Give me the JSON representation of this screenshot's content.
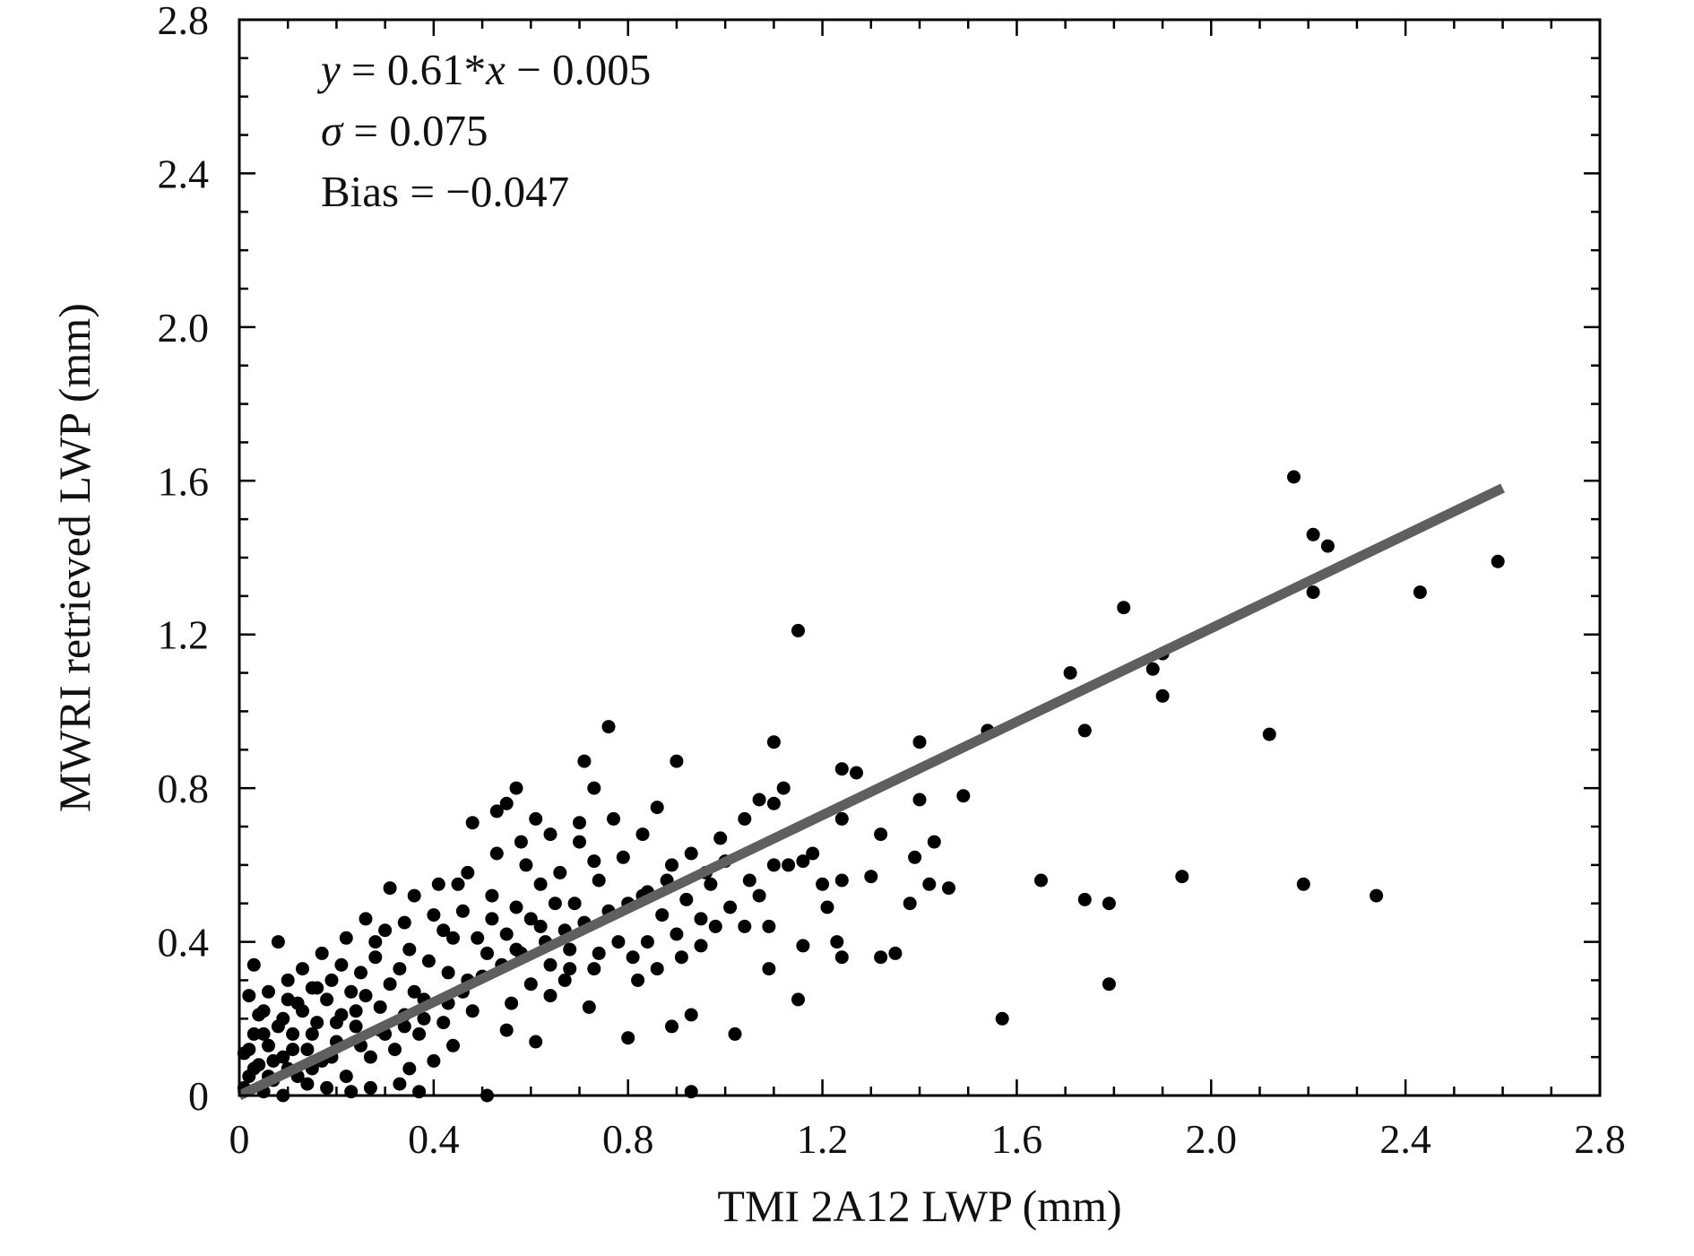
{
  "chart_data": {
    "type": "scatter",
    "title": "",
    "xlabel": "TMI 2A12 LWP (mm)",
    "ylabel": "MWRI retrieved LWP (mm)",
    "xlim": [
      0,
      2.8
    ],
    "ylim": [
      0,
      2.8
    ],
    "x_ticks": [
      "0",
      "0.4",
      "0.8",
      "1.2",
      "1.6",
      "2.0",
      "2.4",
      "2.8"
    ],
    "y_ticks": [
      "0",
      "0.4",
      "0.8",
      "1.2",
      "1.6",
      "2.0",
      "2.4",
      "2.8"
    ],
    "grid": false,
    "point_color": "#000000",
    "fit_line_color": "#5f5f5f",
    "annotations": {
      "equation": {
        "y": "y",
        "mid": " = 0.61*",
        "x": "x",
        "tail": " − 0.005"
      },
      "sigma": {
        "symbol": "σ",
        "text": " = 0.075"
      },
      "bias": "Bias = −0.047"
    },
    "fit_line": {
      "slope": 0.61,
      "intercept": -0.005,
      "x_start": 0.0,
      "x_end": 2.6
    },
    "points": [
      [
        2.17,
        1.61
      ],
      [
        2.21,
        1.46
      ],
      [
        2.24,
        1.43
      ],
      [
        2.21,
        1.31
      ],
      [
        2.59,
        1.39
      ],
      [
        2.43,
        1.31
      ],
      [
        1.82,
        1.27
      ],
      [
        1.71,
        1.1
      ],
      [
        1.9,
        1.15
      ],
      [
        1.88,
        1.11
      ],
      [
        1.9,
        1.04
      ],
      [
        2.12,
        0.94
      ],
      [
        1.74,
        0.95
      ],
      [
        1.54,
        0.95
      ],
      [
        1.15,
        1.21
      ],
      [
        1.4,
        0.92
      ],
      [
        1.49,
        0.78
      ],
      [
        1.4,
        0.77
      ],
      [
        1.24,
        0.85
      ],
      [
        1.27,
        0.84
      ],
      [
        1.1,
        0.92
      ],
      [
        1.94,
        0.57
      ],
      [
        2.19,
        0.55
      ],
      [
        2.34,
        0.52
      ],
      [
        1.65,
        0.56
      ],
      [
        1.74,
        0.51
      ],
      [
        1.79,
        0.5
      ],
      [
        1.79,
        0.29
      ],
      [
        1.57,
        0.2
      ],
      [
        1.43,
        0.66
      ],
      [
        1.46,
        0.54
      ],
      [
        1.42,
        0.55
      ],
      [
        1.38,
        0.5
      ],
      [
        1.39,
        0.62
      ],
      [
        1.32,
        0.68
      ],
      [
        1.3,
        0.57
      ],
      [
        1.32,
        0.36
      ],
      [
        1.35,
        0.37
      ],
      [
        1.24,
        0.72
      ],
      [
        1.24,
        0.56
      ],
      [
        1.23,
        0.4
      ],
      [
        1.24,
        0.36
      ],
      [
        1.2,
        0.55
      ],
      [
        1.21,
        0.49
      ],
      [
        1.16,
        0.61
      ],
      [
        1.16,
        0.39
      ],
      [
        1.15,
        0.25
      ],
      [
        1.12,
        0.8
      ],
      [
        1.1,
        0.76
      ],
      [
        1.07,
        0.77
      ],
      [
        1.1,
        0.6
      ],
      [
        1.09,
        0.44
      ],
      [
        1.09,
        0.33
      ],
      [
        1.05,
        0.56
      ],
      [
        1.04,
        0.44
      ],
      [
        1.0,
        0.61
      ],
      [
        1.02,
        0.16
      ],
      [
        0.97,
        0.55
      ],
      [
        0.95,
        0.46
      ],
      [
        0.93,
        0.21
      ],
      [
        0.93,
        0.01
      ],
      [
        0.9,
        0.87
      ],
      [
        0.86,
        0.75
      ],
      [
        0.89,
        0.6
      ],
      [
        0.83,
        0.52
      ],
      [
        0.84,
        0.4
      ],
      [
        0.82,
        0.3
      ],
      [
        0.8,
        0.15
      ],
      [
        0.89,
        0.18
      ],
      [
        0.76,
        0.96
      ],
      [
        0.71,
        0.87
      ],
      [
        0.73,
        0.8
      ],
      [
        0.7,
        0.71
      ],
      [
        0.64,
        0.68
      ],
      [
        0.61,
        0.72
      ],
      [
        0.57,
        0.8
      ],
      [
        0.55,
        0.76
      ],
      [
        0.53,
        0.74
      ],
      [
        0.48,
        0.71
      ],
      [
        0.73,
        0.61
      ],
      [
        0.62,
        0.55
      ],
      [
        0.74,
        0.37
      ],
      [
        0.68,
        0.33
      ],
      [
        0.64,
        0.26
      ],
      [
        0.72,
        0.23
      ],
      [
        0.56,
        0.24
      ],
      [
        0.55,
        0.17
      ],
      [
        0.61,
        0.14
      ],
      [
        0.51,
        0.0
      ],
      [
        0.37,
        0.01
      ],
      [
        0.33,
        0.03
      ],
      [
        0.6,
        0.46
      ],
      [
        0.57,
        0.38
      ],
      [
        0.52,
        0.52
      ],
      [
        0.49,
        0.41
      ],
      [
        0.45,
        0.55
      ],
      [
        0.43,
        0.32
      ],
      [
        0.4,
        0.47
      ],
      [
        0.38,
        0.25
      ],
      [
        0.35,
        0.38
      ],
      [
        0.34,
        0.21
      ],
      [
        0.31,
        0.29
      ],
      [
        0.3,
        0.43
      ],
      [
        0.29,
        0.17
      ],
      [
        0.28,
        0.36
      ],
      [
        0.27,
        0.1
      ],
      [
        0.26,
        0.26
      ],
      [
        0.25,
        0.32
      ],
      [
        0.24,
        0.18
      ],
      [
        0.23,
        0.27
      ],
      [
        0.22,
        0.05
      ],
      [
        0.21,
        0.21
      ],
      [
        0.2,
        0.14
      ],
      [
        0.19,
        0.3
      ],
      [
        0.18,
        0.25
      ],
      [
        0.17,
        0.09
      ],
      [
        0.16,
        0.19
      ],
      [
        0.15,
        0.28
      ],
      [
        0.14,
        0.12
      ],
      [
        0.13,
        0.22
      ],
      [
        0.12,
        0.05
      ],
      [
        0.11,
        0.16
      ],
      [
        0.1,
        0.25
      ],
      [
        0.09,
        0.1
      ],
      [
        0.08,
        0.4
      ],
      [
        0.08,
        0.18
      ],
      [
        0.07,
        0.04
      ],
      [
        0.06,
        0.13
      ],
      [
        0.05,
        0.22
      ],
      [
        0.04,
        0.08
      ],
      [
        0.03,
        0.16
      ],
      [
        0.03,
        0.34
      ],
      [
        0.02,
        0.05
      ],
      [
        0.01,
        0.11
      ],
      [
        0.01,
        0.02
      ],
      [
        0.02,
        0.26
      ],
      [
        0.05,
        0.01
      ],
      [
        0.09,
        0.0
      ],
      [
        0.14,
        0.03
      ],
      [
        0.18,
        0.02
      ],
      [
        0.23,
        0.01
      ],
      [
        0.27,
        0.02
      ],
      [
        0.35,
        0.07
      ],
      [
        0.32,
        0.12
      ],
      [
        0.37,
        0.16
      ],
      [
        0.42,
        0.19
      ],
      [
        0.46,
        0.27
      ],
      [
        0.5,
        0.31
      ],
      [
        0.54,
        0.34
      ],
      [
        0.58,
        0.37
      ],
      [
        0.63,
        0.4
      ],
      [
        0.67,
        0.43
      ],
      [
        0.71,
        0.45
      ],
      [
        0.76,
        0.48
      ],
      [
        0.8,
        0.5
      ],
      [
        0.84,
        0.53
      ],
      [
        0.87,
        0.47
      ],
      [
        0.92,
        0.51
      ],
      [
        0.96,
        0.58
      ],
      [
        0.98,
        0.44
      ],
      [
        0.91,
        0.36
      ],
      [
        0.86,
        0.33
      ],
      [
        0.78,
        0.4
      ],
      [
        0.69,
        0.5
      ],
      [
        0.66,
        0.58
      ],
      [
        0.59,
        0.6
      ],
      [
        0.53,
        0.63
      ],
      [
        0.47,
        0.58
      ],
      [
        0.41,
        0.55
      ],
      [
        0.36,
        0.52
      ],
      [
        0.31,
        0.54
      ],
      [
        0.26,
        0.46
      ],
      [
        0.22,
        0.41
      ],
      [
        0.17,
        0.37
      ],
      [
        0.13,
        0.33
      ],
      [
        0.1,
        0.3
      ],
      [
        0.06,
        0.27
      ],
      [
        0.04,
        0.21
      ],
      [
        0.44,
        0.41
      ],
      [
        0.39,
        0.35
      ],
      [
        0.33,
        0.33
      ],
      [
        0.29,
        0.23
      ],
      [
        0.24,
        0.22
      ],
      [
        0.2,
        0.19
      ],
      [
        0.15,
        0.16
      ],
      [
        0.11,
        0.12
      ],
      [
        0.07,
        0.09
      ],
      [
        0.03,
        0.07
      ],
      [
        0.48,
        0.22
      ],
      [
        0.44,
        0.13
      ],
      [
        0.4,
        0.09
      ],
      [
        0.36,
        0.27
      ],
      [
        0.57,
        0.49
      ],
      [
        0.62,
        0.44
      ],
      [
        0.65,
        0.5
      ],
      [
        0.68,
        0.38
      ],
      [
        0.74,
        0.56
      ],
      [
        0.79,
        0.62
      ],
      [
        0.88,
        0.56
      ],
      [
        0.93,
        0.63
      ],
      [
        0.99,
        0.67
      ],
      [
        1.04,
        0.72
      ],
      [
        0.83,
        0.68
      ],
      [
        0.77,
        0.72
      ],
      [
        0.7,
        0.66
      ],
      [
        0.58,
        0.66
      ],
      [
        0.52,
        0.46
      ],
      [
        0.46,
        0.48
      ],
      [
        0.42,
        0.43
      ],
      [
        0.34,
        0.45
      ],
      [
        0.28,
        0.4
      ],
      [
        0.21,
        0.34
      ],
      [
        0.16,
        0.28
      ],
      [
        0.12,
        0.24
      ],
      [
        0.09,
        0.2
      ],
      [
        0.05,
        0.16
      ],
      [
        0.02,
        0.12
      ],
      [
        0.06,
        0.05
      ],
      [
        0.1,
        0.07
      ],
      [
        0.15,
        0.07
      ],
      [
        0.19,
        0.1
      ],
      [
        0.25,
        0.13
      ],
      [
        0.3,
        0.16
      ],
      [
        0.34,
        0.18
      ],
      [
        0.38,
        0.2
      ],
      [
        0.43,
        0.24
      ],
      [
        0.47,
        0.3
      ],
      [
        0.51,
        0.37
      ],
      [
        0.55,
        0.42
      ],
      [
        0.6,
        0.29
      ],
      [
        0.64,
        0.34
      ],
      [
        0.67,
        0.3
      ],
      [
        0.73,
        0.33
      ],
      [
        0.81,
        0.36
      ],
      [
        0.9,
        0.42
      ],
      [
        0.95,
        0.39
      ],
      [
        1.01,
        0.49
      ],
      [
        1.07,
        0.52
      ],
      [
        1.13,
        0.6
      ],
      [
        1.18,
        0.63
      ]
    ]
  }
}
